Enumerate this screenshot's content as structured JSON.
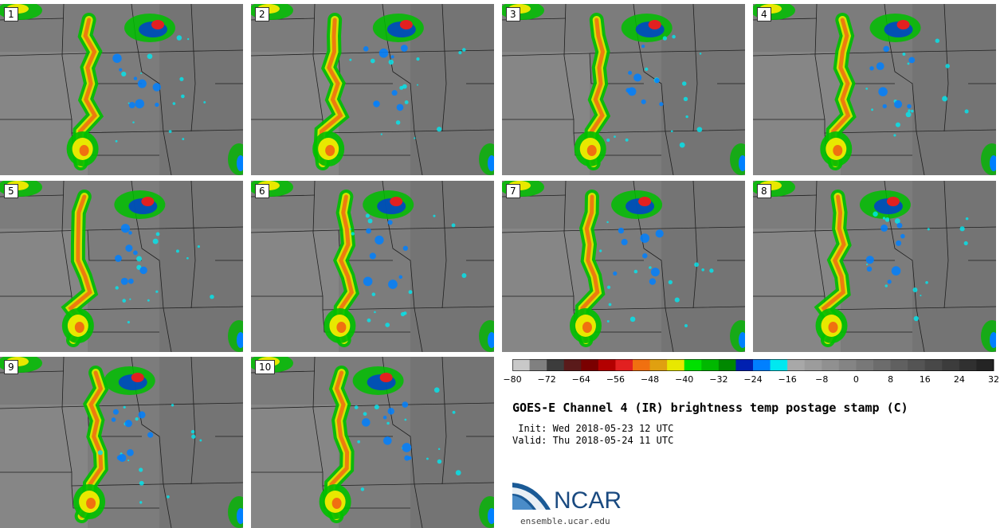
{
  "panels": [
    {
      "label": "1"
    },
    {
      "label": "2"
    },
    {
      "label": "3"
    },
    {
      "label": "4"
    },
    {
      "label": "5"
    },
    {
      "label": "6"
    },
    {
      "label": "7"
    },
    {
      "label": "8"
    },
    {
      "label": "9"
    },
    {
      "label": "10"
    }
  ],
  "colorbar": {
    "colors": [
      "#c8c8c8",
      "#808080",
      "#3c3c3c",
      "#5a1a1a",
      "#7a0000",
      "#b30000",
      "#e22020",
      "#f07010",
      "#e0a010",
      "#e8e800",
      "#00e000",
      "#00b800",
      "#008800",
      "#0020b0",
      "#0080ff",
      "#00e8f0",
      "#a8a8a8",
      "#9c9c9c",
      "#909090",
      "#848484",
      "#787878",
      "#6c6c6c",
      "#606060",
      "#545454",
      "#484848",
      "#3c3c3c",
      "#303030",
      "#242424"
    ],
    "tick_labels": [
      "−80",
      "−72",
      "−64",
      "−56",
      "−48",
      "−40",
      "−32",
      "−24",
      "−16",
      "−8",
      "0",
      "8",
      "16",
      "24",
      "32"
    ]
  },
  "title": "GOES-E Channel 4 (IR) brightness temp postage stamp (C)",
  "init_line": " Init: Wed 2018-05-23 12 UTC",
  "valid_line": "Valid: Thu 2018-05-24 11 UTC",
  "logo": {
    "name": "NCAR",
    "site": "ensemble.ucar.edu",
    "brand_color": "#1a5a96"
  }
}
